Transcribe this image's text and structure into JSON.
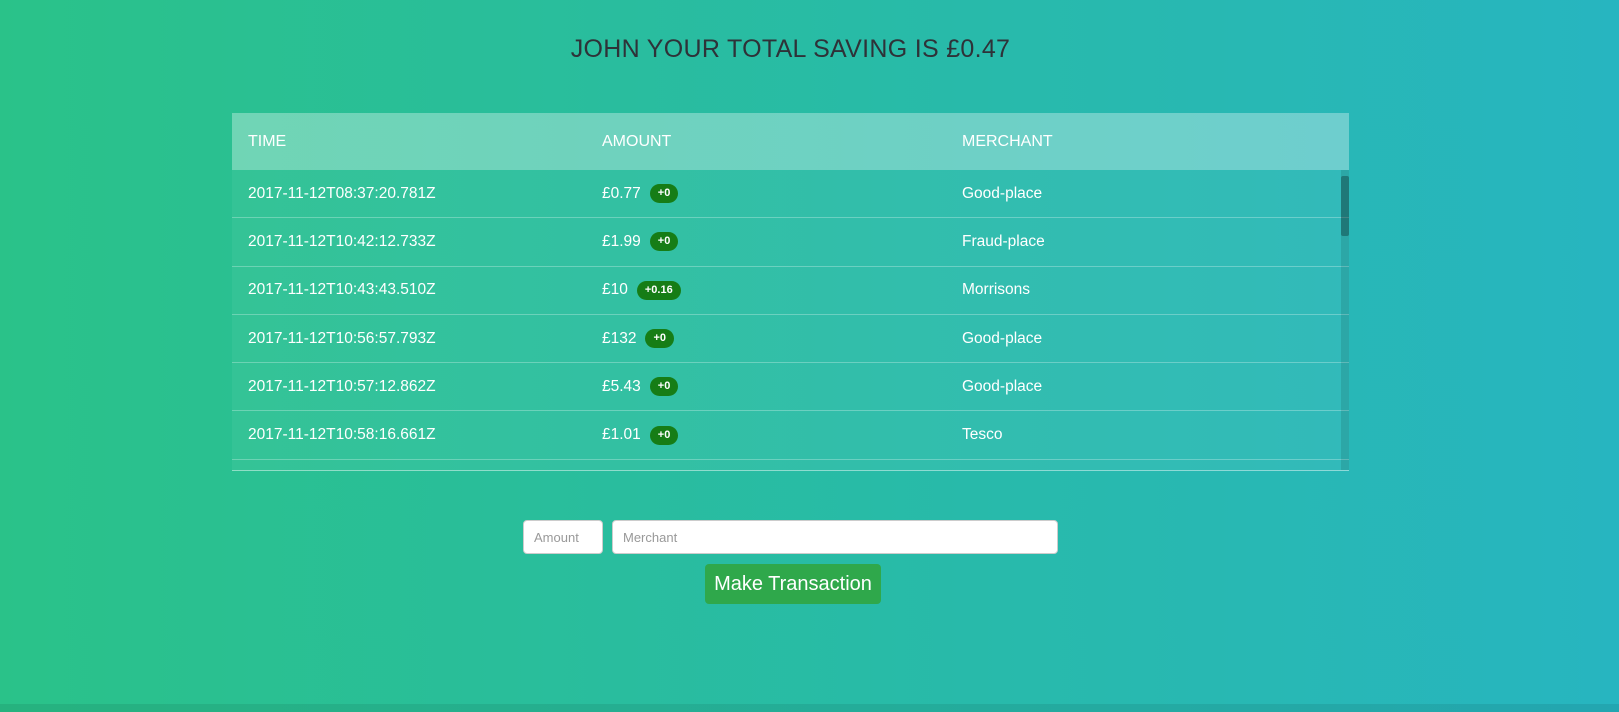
{
  "page": {
    "title": "JOHN YOUR TOTAL SAVING IS £0.47"
  },
  "table": {
    "columns": [
      "TIME",
      "AMOUNT",
      "MERCHANT"
    ],
    "rows": [
      {
        "time": "2017-11-12T08:37:20.781Z",
        "amount": "£0.77",
        "badge": "+0",
        "merchant": "Good-place"
      },
      {
        "time": "2017-11-12T10:42:12.733Z",
        "amount": "£1.99",
        "badge": "+0",
        "merchant": "Fraud-place"
      },
      {
        "time": "2017-11-12T10:43:43.510Z",
        "amount": "£10",
        "badge": "+0.16",
        "merchant": "Morrisons"
      },
      {
        "time": "2017-11-12T10:56:57.793Z",
        "amount": "£132",
        "badge": "+0",
        "merchant": "Good-place"
      },
      {
        "time": "2017-11-12T10:57:12.862Z",
        "amount": "£5.43",
        "badge": "+0",
        "merchant": "Good-place"
      },
      {
        "time": "2017-11-12T10:58:16.661Z",
        "amount": "£1.01",
        "badge": "+0",
        "merchant": "Tesco"
      }
    ]
  },
  "form": {
    "amount_placeholder": "Amount",
    "merchant_placeholder": "Merchant",
    "submit_label": "Make Transaction"
  },
  "colors": {
    "bg_left": "#2ac289",
    "bg_right": "#27b5c0",
    "badge_green": "#167d16",
    "button_green": "#2fa84b",
    "title_text": "#2e3238"
  }
}
